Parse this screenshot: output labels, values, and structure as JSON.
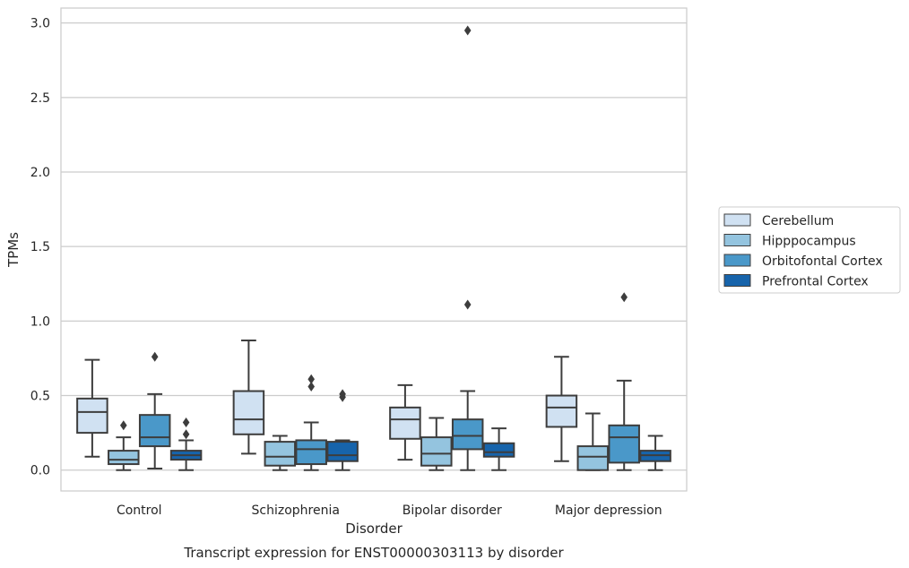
{
  "chart_data": {
    "type": "box",
    "title": "Transcript expression for ENST00000303113 by disorder",
    "xlabel": "Disorder",
    "ylabel": "TPMs",
    "ylim": [
      -0.14,
      3.1
    ],
    "yticks": [
      0.0,
      0.5,
      1.0,
      1.5,
      2.0,
      2.5,
      3.0
    ],
    "ytick_labels": [
      "0.0",
      "0.5",
      "1.0",
      "1.5",
      "2.0",
      "2.5",
      "3.0"
    ],
    "grid": true,
    "legend_position": "right",
    "categories": [
      "Control",
      "Schizophrenia",
      "Bipolar disorder",
      "Major depression"
    ],
    "series": [
      {
        "name": "Cerebellum",
        "color": "#d0e1f2",
        "boxes": [
          {
            "whislo": 0.09,
            "q1": 0.25,
            "med": 0.39,
            "q3": 0.48,
            "whishi": 0.74,
            "fliers": []
          },
          {
            "whislo": 0.11,
            "q1": 0.24,
            "med": 0.34,
            "q3": 0.53,
            "whishi": 0.87,
            "fliers": []
          },
          {
            "whislo": 0.07,
            "q1": 0.21,
            "med": 0.34,
            "q3": 0.42,
            "whishi": 0.57,
            "fliers": []
          },
          {
            "whislo": 0.06,
            "q1": 0.29,
            "med": 0.42,
            "q3": 0.5,
            "whishi": 0.76,
            "fliers": []
          }
        ]
      },
      {
        "name": "Hipppocampus",
        "color": "#94c4df",
        "boxes": [
          {
            "whislo": 0.0,
            "q1": 0.04,
            "med": 0.07,
            "q3": 0.13,
            "whishi": 0.22,
            "fliers": [
              0.3
            ]
          },
          {
            "whislo": 0.0,
            "q1": 0.03,
            "med": 0.09,
            "q3": 0.19,
            "whishi": 0.23,
            "fliers": []
          },
          {
            "whislo": 0.0,
            "q1": 0.03,
            "med": 0.11,
            "q3": 0.22,
            "whishi": 0.35,
            "fliers": []
          },
          {
            "whislo": 0.0,
            "q1": 0.0,
            "med": 0.09,
            "q3": 0.16,
            "whishi": 0.38,
            "fliers": []
          }
        ]
      },
      {
        "name": "Orbitofontal Cortex",
        "color": "#4a98c9",
        "boxes": [
          {
            "whislo": 0.01,
            "q1": 0.16,
            "med": 0.22,
            "q3": 0.37,
            "whishi": 0.51,
            "fliers": [
              0.76
            ]
          },
          {
            "whislo": 0.0,
            "q1": 0.04,
            "med": 0.14,
            "q3": 0.2,
            "whishi": 0.32,
            "fliers": [
              0.56,
              0.61
            ]
          },
          {
            "whislo": 0.0,
            "q1": 0.14,
            "med": 0.23,
            "q3": 0.34,
            "whishi": 0.53,
            "fliers": [
              1.11,
              2.95
            ]
          },
          {
            "whislo": 0.0,
            "q1": 0.05,
            "med": 0.22,
            "q3": 0.3,
            "whishi": 0.6,
            "fliers": [
              1.16
            ]
          }
        ]
      },
      {
        "name": "Prefrontal Cortex",
        "color": "#1764ab",
        "boxes": [
          {
            "whislo": 0.0,
            "q1": 0.07,
            "med": 0.1,
            "q3": 0.13,
            "whishi": 0.2,
            "fliers": [
              0.24,
              0.32
            ]
          },
          {
            "whislo": 0.0,
            "q1": 0.06,
            "med": 0.1,
            "q3": 0.19,
            "whishi": 0.2,
            "fliers": [
              0.49,
              0.51
            ]
          },
          {
            "whislo": 0.0,
            "q1": 0.09,
            "med": 0.12,
            "q3": 0.18,
            "whishi": 0.28,
            "fliers": []
          },
          {
            "whislo": 0.0,
            "q1": 0.06,
            "med": 0.1,
            "q3": 0.13,
            "whishi": 0.23,
            "fliers": []
          }
        ]
      }
    ]
  }
}
